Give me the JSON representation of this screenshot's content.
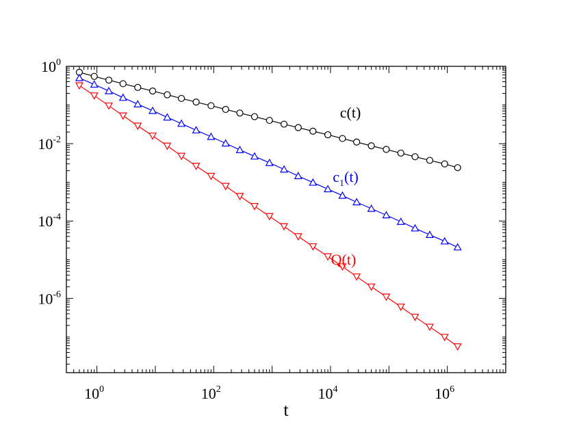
{
  "chart_data": {
    "type": "line",
    "xlabel": "t",
    "ylabel": "",
    "xscale": "log",
    "yscale": "log",
    "xlim": [
      0.3,
      10000000
    ],
    "ylim": [
      1.2e-08,
      1
    ],
    "grid": false,
    "x_ticks": [
      {
        "base": "10",
        "exp": "0"
      },
      {
        "base": "10",
        "exp": "2"
      },
      {
        "base": "10",
        "exp": "4"
      },
      {
        "base": "10",
        "exp": "6"
      }
    ],
    "y_ticks": [
      {
        "base": "10",
        "exp": "0"
      },
      {
        "base": "10",
        "exp": "-2"
      },
      {
        "base": "10",
        "exp": "-4"
      },
      {
        "base": "10",
        "exp": "-6"
      }
    ],
    "t": [
      0.5,
      0.9,
      1.6,
      2.8,
      5,
      9,
      16,
      28,
      50,
      90,
      160,
      280,
      500,
      900,
      1600,
      2800,
      5000,
      9000,
      16000,
      28000,
      50000,
      90000,
      160000,
      280000,
      500000,
      900000,
      1500000
    ],
    "series": [
      {
        "name": "c",
        "label_main": "c(t)",
        "label_sub": "",
        "label_tail": "",
        "color": "#000000",
        "marker": "circle",
        "values": [
          0.7,
          0.55,
          0.44,
          0.355,
          0.285,
          0.23,
          0.184,
          0.148,
          0.119,
          0.096,
          0.077,
          0.062,
          0.05,
          0.04,
          0.032,
          0.026,
          0.021,
          0.017,
          0.0136,
          0.011,
          0.0088,
          0.0071,
          0.0057,
          0.0046,
          0.0037,
          0.003,
          0.0024
        ]
      },
      {
        "name": "c1",
        "label_main": "c",
        "label_sub": "1",
        "label_tail": "(t)",
        "color": "#0000ff",
        "marker": "triangle-up",
        "values": [
          0.5,
          0.34,
          0.23,
          0.155,
          0.105,
          0.071,
          0.048,
          0.033,
          0.0223,
          0.0151,
          0.0102,
          0.0069,
          0.0047,
          0.0032,
          0.00216,
          0.00146,
          0.00099,
          0.00067,
          0.000455,
          0.000308,
          0.000209,
          0.000142,
          9.6e-05,
          6.5e-05,
          4.4e-05,
          3e-05,
          2.1e-05
        ]
      },
      {
        "name": "Q",
        "label_main": "Q(t)",
        "label_sub": "",
        "label_tail": "",
        "color": "#ff0000",
        "marker": "triangle-down",
        "values": [
          0.32,
          0.175,
          0.096,
          0.053,
          0.029,
          0.016,
          0.0088,
          0.0048,
          0.00265,
          0.00146,
          0.0008,
          0.00044,
          0.000242,
          0.000133,
          7.3e-05,
          4e-05,
          2.2e-05,
          1.21e-05,
          6.65e-06,
          3.65e-06,
          2e-06,
          1.1e-06,
          6.05e-07,
          3.32e-07,
          1.83e-07,
          1e-07,
          5.7e-08
        ]
      }
    ]
  }
}
